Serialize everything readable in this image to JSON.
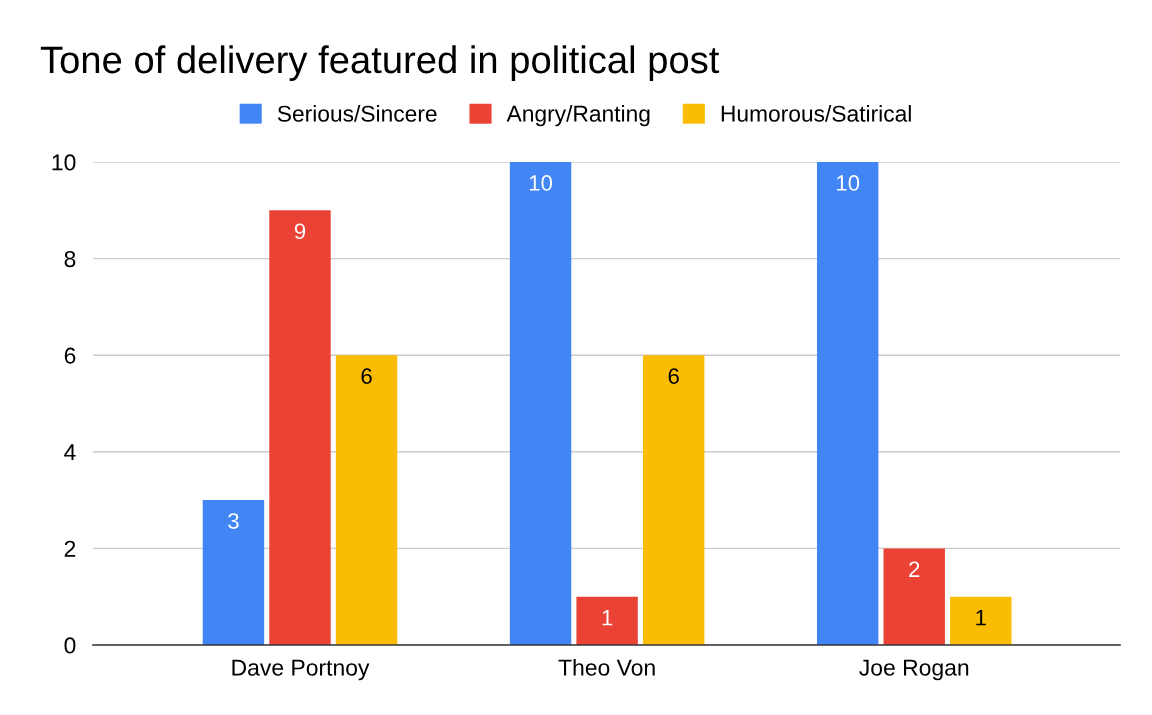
{
  "chart_data": {
    "type": "bar",
    "title": "Tone of delivery featured in political post",
    "categories": [
      "Dave Portnoy",
      "Theo Von",
      "Joe Rogan"
    ],
    "series": [
      {
        "name": "Serious/Sincere",
        "color": "#4285f4",
        "values": [
          3,
          10,
          10
        ]
      },
      {
        "name": "Angry/Ranting",
        "color": "#ea4335",
        "values": [
          9,
          1,
          2
        ]
      },
      {
        "name": "Humorous/Satirical",
        "color": "#fbbc04",
        "values": [
          6,
          6,
          1
        ]
      }
    ],
    "ylim": [
      0,
      10
    ],
    "yticks": [
      0,
      2,
      4,
      6,
      8,
      10
    ],
    "grid": "y",
    "legend": "top",
    "data_labels": true
  }
}
